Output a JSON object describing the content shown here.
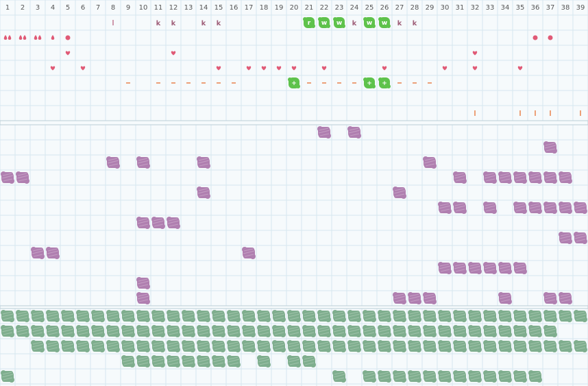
{
  "palette": {
    "background": "#f6fafc",
    "gridline": "#d6e7ef",
    "divider": "#b9cdd6",
    "pink": "#e05a76",
    "purple_blob": "#b07fb0",
    "green_blob": "#7fae8e",
    "green_badge": "#5ec24b",
    "orange": "#e8834c"
  },
  "columns": [
    "1",
    "2",
    "3",
    "4",
    "5",
    "6",
    "7",
    "8",
    "9",
    "10",
    "11",
    "12",
    "13",
    "14",
    "15",
    "16",
    "17",
    "18",
    "19",
    "20",
    "21",
    "22",
    "23",
    "24",
    "25",
    "26",
    "27",
    "28",
    "29",
    "30",
    "31",
    "32",
    "33",
    "34",
    "35",
    "36",
    "37",
    "38",
    "39"
  ],
  "top_markers": [
    {
      "row": 1,
      "col": 8,
      "kind": "bar"
    },
    {
      "row": 1,
      "col": 11,
      "kind": "letter",
      "text": "k"
    },
    {
      "row": 1,
      "col": 12,
      "kind": "letter",
      "text": "k"
    },
    {
      "row": 1,
      "col": 14,
      "kind": "letter",
      "text": "k"
    },
    {
      "row": 1,
      "col": 15,
      "kind": "letter",
      "text": "k"
    },
    {
      "row": 1,
      "col": 21,
      "kind": "badge",
      "text": "r"
    },
    {
      "row": 1,
      "col": 22,
      "kind": "badge",
      "text": "w"
    },
    {
      "row": 1,
      "col": 23,
      "kind": "badge",
      "text": "w"
    },
    {
      "row": 1,
      "col": 24,
      "kind": "letter",
      "text": "k"
    },
    {
      "row": 1,
      "col": 25,
      "kind": "badge",
      "text": "w"
    },
    {
      "row": 1,
      "col": 26,
      "kind": "badge",
      "text": "w"
    },
    {
      "row": 1,
      "col": 27,
      "kind": "letter",
      "text": "k"
    },
    {
      "row": 1,
      "col": 28,
      "kind": "letter",
      "text": "k"
    },
    {
      "row": 2,
      "col": 1,
      "kind": "drops",
      "count": 2
    },
    {
      "row": 2,
      "col": 2,
      "kind": "drops",
      "count": 2
    },
    {
      "row": 2,
      "col": 3,
      "kind": "drops",
      "count": 2
    },
    {
      "row": 2,
      "col": 4,
      "kind": "drops",
      "count": 1
    },
    {
      "row": 2,
      "col": 5,
      "kind": "dot"
    },
    {
      "row": 2,
      "col": 36,
      "kind": "dot"
    },
    {
      "row": 2,
      "col": 37,
      "kind": "dot"
    },
    {
      "row": 3,
      "col": 5,
      "kind": "heart"
    },
    {
      "row": 3,
      "col": 12,
      "kind": "heart"
    },
    {
      "row": 3,
      "col": 32,
      "kind": "heart"
    },
    {
      "row": 4,
      "col": 4,
      "kind": "heart"
    },
    {
      "row": 4,
      "col": 6,
      "kind": "heart"
    },
    {
      "row": 4,
      "col": 15,
      "kind": "heart"
    },
    {
      "row": 4,
      "col": 17,
      "kind": "heart"
    },
    {
      "row": 4,
      "col": 18,
      "kind": "heart"
    },
    {
      "row": 4,
      "col": 19,
      "kind": "heart"
    },
    {
      "row": 4,
      "col": 20,
      "kind": "heart"
    },
    {
      "row": 4,
      "col": 22,
      "kind": "heart"
    },
    {
      "row": 4,
      "col": 26,
      "kind": "heart"
    },
    {
      "row": 4,
      "col": 30,
      "kind": "heart"
    },
    {
      "row": 4,
      "col": 32,
      "kind": "heart"
    },
    {
      "row": 4,
      "col": 35,
      "kind": "heart"
    },
    {
      "row": 5,
      "col": 9,
      "kind": "dash"
    },
    {
      "row": 5,
      "col": 11,
      "kind": "dash"
    },
    {
      "row": 5,
      "col": 12,
      "kind": "dash"
    },
    {
      "row": 5,
      "col": 13,
      "kind": "dash"
    },
    {
      "row": 5,
      "col": 14,
      "kind": "dash"
    },
    {
      "row": 5,
      "col": 15,
      "kind": "dash"
    },
    {
      "row": 5,
      "col": 16,
      "kind": "dash"
    },
    {
      "row": 5,
      "col": 20,
      "kind": "badge",
      "text": "+"
    },
    {
      "row": 5,
      "col": 21,
      "kind": "dash"
    },
    {
      "row": 5,
      "col": 22,
      "kind": "dash"
    },
    {
      "row": 5,
      "col": 23,
      "kind": "dash"
    },
    {
      "row": 5,
      "col": 24,
      "kind": "dash"
    },
    {
      "row": 5,
      "col": 25,
      "kind": "badge",
      "text": "+"
    },
    {
      "row": 5,
      "col": 26,
      "kind": "badge",
      "text": "+"
    },
    {
      "row": 5,
      "col": 27,
      "kind": "dash"
    },
    {
      "row": 5,
      "col": 28,
      "kind": "dash"
    },
    {
      "row": 5,
      "col": 29,
      "kind": "dash"
    },
    {
      "row": 7,
      "col": 32,
      "kind": "tick"
    },
    {
      "row": 7,
      "col": 35,
      "kind": "tick"
    },
    {
      "row": 7,
      "col": 36,
      "kind": "tick"
    },
    {
      "row": 7,
      "col": 37,
      "kind": "tick"
    },
    {
      "row": 7,
      "col": 39,
      "kind": "tick"
    }
  ],
  "purple_rows": [
    [
      22,
      24
    ],
    [
      37
    ],
    [
      8,
      10,
      14,
      29
    ],
    [
      1,
      2,
      31,
      33,
      34,
      35,
      36,
      37,
      38
    ],
    [
      14,
      27
    ],
    [
      30,
      31,
      33,
      35,
      36,
      37,
      38,
      39
    ],
    [
      10,
      11,
      12
    ],
    [
      38,
      39
    ],
    [
      3,
      4,
      17
    ],
    [
      30,
      31,
      32,
      33,
      34,
      35
    ],
    [
      10
    ],
    [
      10,
      27,
      28,
      29,
      34,
      37,
      38
    ]
  ],
  "green_rows": [
    [
      1,
      2,
      3,
      4,
      5,
      6,
      7,
      8,
      9,
      10,
      11,
      12,
      13,
      14,
      15,
      16,
      17,
      18,
      19,
      20,
      21,
      22,
      23,
      24,
      25,
      26,
      27,
      28,
      29,
      30,
      31,
      32,
      33,
      34,
      35,
      36,
      37,
      38,
      39
    ],
    [
      1,
      2,
      3,
      4,
      5,
      6,
      7,
      8,
      9,
      10,
      11,
      12,
      13,
      14,
      15,
      16,
      17,
      18,
      19,
      20,
      21,
      22,
      23,
      24,
      25,
      26,
      27,
      28,
      29,
      30,
      31,
      32,
      33,
      34,
      35,
      36,
      37
    ],
    [
      3,
      4,
      5,
      6,
      7,
      8,
      9,
      10,
      11,
      12,
      13,
      14,
      15,
      16,
      17,
      18,
      19,
      20,
      21,
      22,
      23,
      24,
      25,
      26,
      27,
      28,
      29,
      30,
      31,
      32,
      33,
      34,
      35,
      36,
      37,
      38,
      39
    ],
    [
      9,
      10,
      11,
      12,
      13,
      14,
      15,
      16,
      18,
      20,
      21
    ],
    [
      1,
      23,
      25,
      26,
      27,
      28,
      29,
      30,
      31,
      32,
      33,
      34,
      35,
      36
    ]
  ]
}
